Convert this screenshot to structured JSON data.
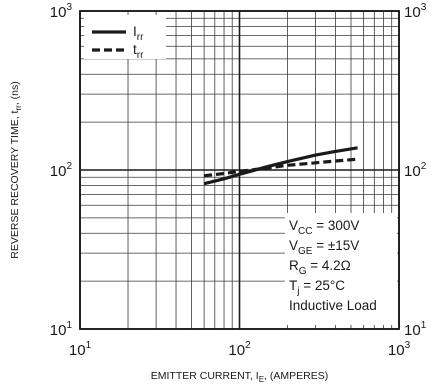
{
  "chart_data": {
    "type": "line",
    "xlabel": {
      "main": "EMITTER CURRENT, I",
      "sub": "E",
      "tail": ", (AMPERES)"
    },
    "ylabel": {
      "main": "REVERSE RECOVERY TIME, t",
      "sub": "rr",
      "tail": ", (ns)"
    },
    "x_scale": "log",
    "y_scale": "log",
    "xlim": [
      10,
      1000
    ],
    "ylim": [
      10,
      1000
    ],
    "x_ticks": [
      {
        "value": 10,
        "base": "10",
        "exp": "1"
      },
      {
        "value": 100,
        "base": "10",
        "exp": "2"
      },
      {
        "value": 1000,
        "base": "10",
        "exp": "3"
      }
    ],
    "y_ticks": [
      {
        "value": 10,
        "base": "10",
        "exp": "1"
      },
      {
        "value": 100,
        "base": "10",
        "exp": "2"
      },
      {
        "value": 1000,
        "base": "10",
        "exp": "3"
      }
    ],
    "grid": true,
    "legend_position": "top-left",
    "series": [
      {
        "name": "I",
        "name_sub": "rr",
        "style": "solid",
        "color": "#1a1a1a",
        "x": [
          60,
          80,
          100,
          150,
          200,
          300,
          400,
          550
        ],
        "y": [
          82,
          88,
          94,
          105,
          113,
          124,
          131,
          138
        ]
      },
      {
        "name": "t",
        "name_sub": "rr",
        "style": "dashed",
        "color": "#1a1a1a",
        "x": [
          60,
          80,
          100,
          150,
          200,
          300,
          400,
          550
        ],
        "y": [
          92,
          95,
          98,
          103,
          107,
          111,
          114,
          117
        ]
      }
    ],
    "annotations": [
      {
        "main": "V",
        "sub": "CC",
        "tail": " = 300V"
      },
      {
        "main": "V",
        "sub": "GE",
        "tail": " = ±15V"
      },
      {
        "main": "R",
        "sub": "G",
        "tail": " = 4.2Ω"
      },
      {
        "main": "T",
        "sub": "j",
        "tail": " = 25°C"
      },
      {
        "main": "Inductive Load",
        "sub": "",
        "tail": ""
      }
    ]
  }
}
